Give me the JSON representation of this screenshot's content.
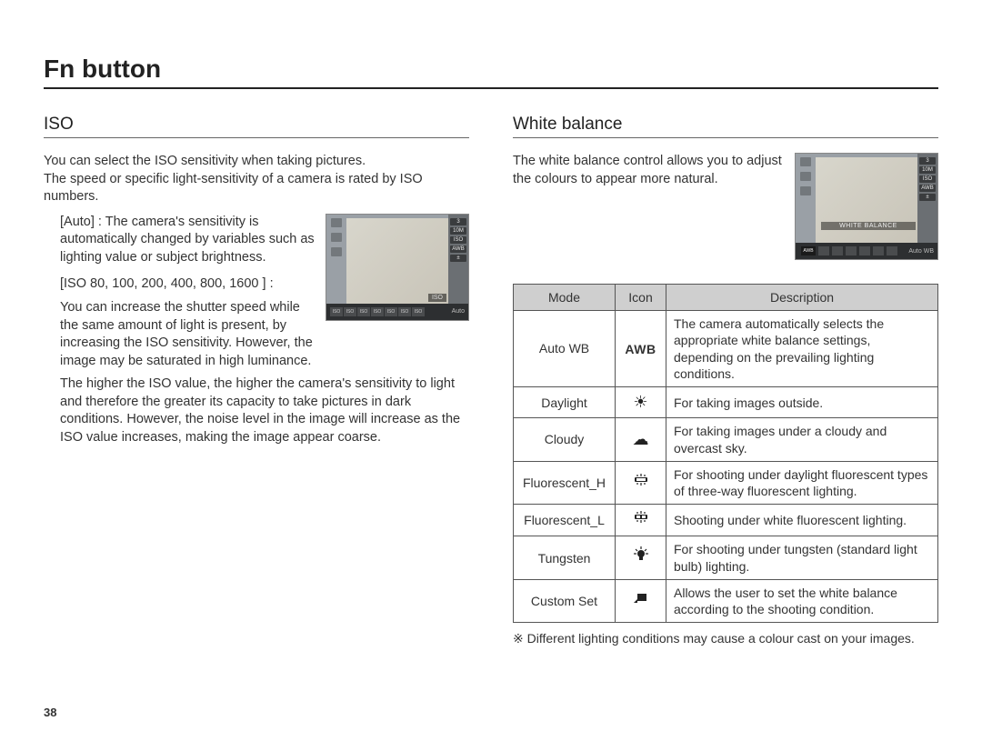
{
  "page": {
    "title": "Fn button",
    "number": "38"
  },
  "iso": {
    "heading": "ISO",
    "intro": "You can select the ISO sensitivity when taking pictures.\nThe speed or specific light-sensitivity of a camera is rated by ISO numbers.",
    "auto_label": "[Auto] :",
    "auto_text": "The camera's sensitivity is automatically changed by variables such as lighting value or subject brightness.",
    "range_label": "[ISO 80, 100, 200, 400, 800, 1600 ] :",
    "range_text": "You can increase the shutter speed while the same amount of light is present, by increasing the ISO sensitivity. However, the image may be saturated in high luminance.",
    "detail": "The higher the ISO value, the higher the camera's sensitivity to light and therefore the greater its capacity to take pictures in dark conditions. However, the noise level in the image will increase as the ISO value increases, making the image appear coarse.",
    "screenshot": {
      "overlay_label": "ISO",
      "bottom_auto": "Auto",
      "right_chips": [
        "3",
        "10M",
        "ISO",
        "AWB",
        "±"
      ],
      "bottom_cells": [
        "ISO",
        "ISO",
        "ISO",
        "ISO",
        "ISO",
        "ISO",
        "ISO"
      ],
      "bottom_sub": [
        "AUTO",
        "80",
        "100",
        "200",
        "400",
        "800",
        "1600"
      ]
    }
  },
  "wb": {
    "heading": "White balance",
    "intro": "The white balance control allows you to adjust the colours to appear more natural.",
    "screenshot": {
      "overlay_label": "WHITE BALANCE",
      "bottom_auto": "Auto WB",
      "right_chips": [
        "3",
        "10M",
        "ISO",
        "AWB",
        "±"
      ]
    },
    "table": {
      "headers": [
        "Mode",
        "Icon",
        "Description"
      ],
      "rows": [
        {
          "mode": "Auto WB",
          "icon": "AWB",
          "icon_type": "text",
          "desc": "The camera automatically selects the appropriate white balance settings, depending on the prevailing lighting conditions."
        },
        {
          "mode": "Daylight",
          "icon": "☀",
          "icon_type": "glyph",
          "desc": "For taking images outside."
        },
        {
          "mode": "Cloudy",
          "icon": "☁",
          "icon_type": "glyph",
          "desc": "For taking images under a cloudy and overcast sky."
        },
        {
          "mode": "Fluorescent_H",
          "icon": "fluor-h",
          "icon_type": "svg",
          "desc": "For shooting under daylight fluorescent types of three-way fluorescent lighting."
        },
        {
          "mode": "Fluorescent_L",
          "icon": "fluor-l",
          "icon_type": "svg",
          "desc": "Shooting under white fluorescent lighting."
        },
        {
          "mode": "Tungsten",
          "icon": "tungsten",
          "icon_type": "svg",
          "desc": "For shooting under tungsten (standard light bulb) lighting."
        },
        {
          "mode": "Custom Set",
          "icon": "custom",
          "icon_type": "svg",
          "desc": "Allows the user to set the white balance according to the shooting condition."
        }
      ]
    },
    "footnote": "※ Different lighting conditions may cause a colour cast on your images."
  },
  "style": {
    "page_bg": "#ffffff",
    "text_color": "#333333",
    "heading_color": "#222222",
    "rule_color": "#222222",
    "subrule_color": "#666666",
    "table_border": "#555555",
    "table_header_bg": "#cfcfcf",
    "screenshot_bg": "#9aa0a6",
    "title_fontsize": 28,
    "heading_fontsize": 19,
    "body_fontsize": 14.5,
    "table_fontsize": 14
  }
}
